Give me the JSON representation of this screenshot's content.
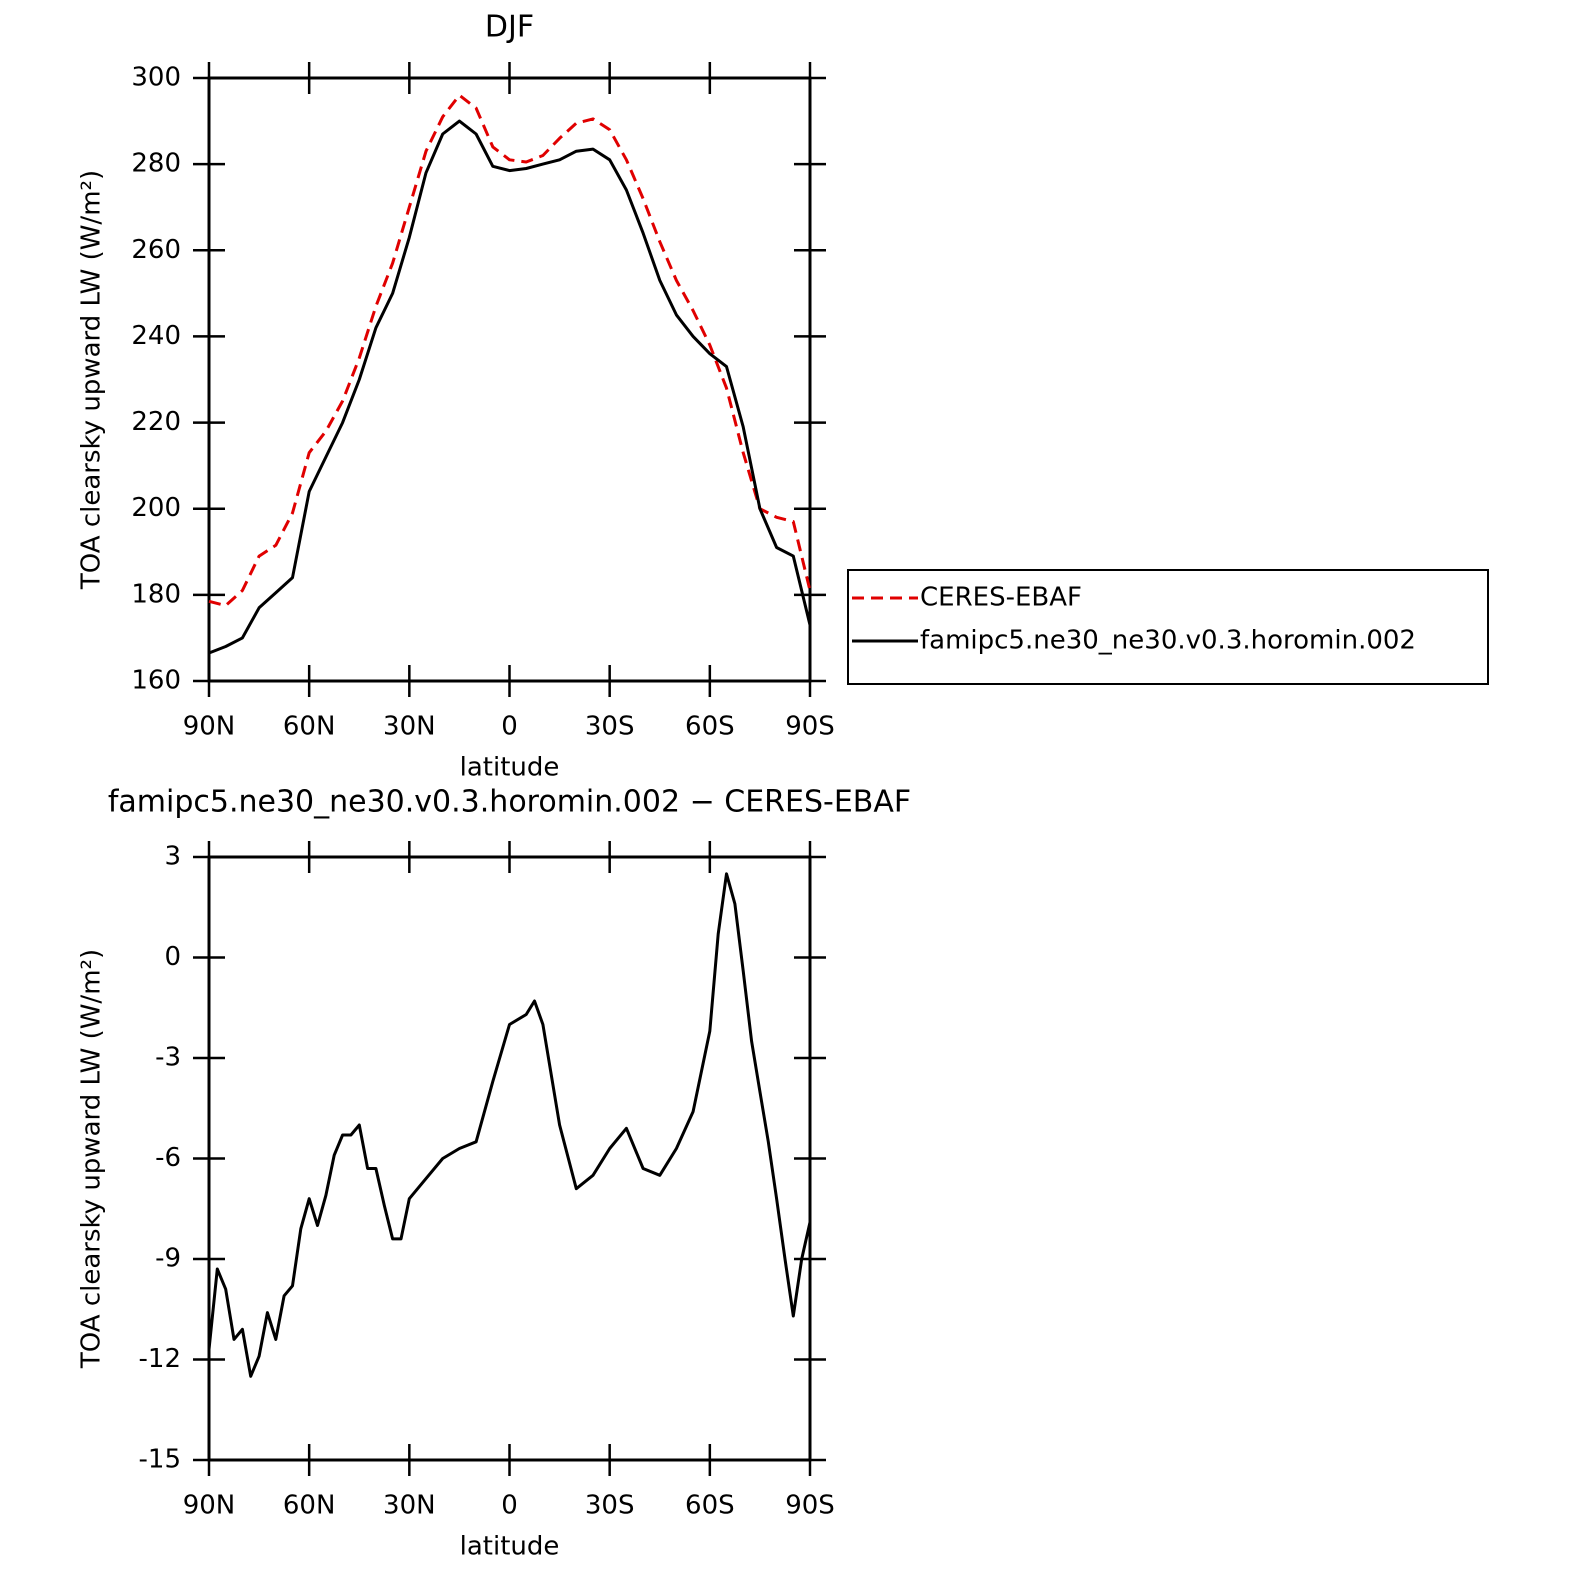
{
  "chart_data": [
    {
      "type": "line",
      "title": "DJF",
      "xlabel": "latitude",
      "ylabel": "TOA clearsky upward LW (W/m²)",
      "x": [
        90,
        85,
        80,
        75,
        70,
        65,
        60,
        55,
        50,
        45,
        40,
        35,
        30,
        25,
        20,
        15,
        10,
        5,
        0,
        -5,
        -10,
        -15,
        -20,
        -25,
        -30,
        -35,
        -40,
        -45,
        -50,
        -55,
        -60,
        -65,
        -70,
        -75,
        -80,
        -85,
        -90
      ],
      "series": [
        {
          "name": "CERES-EBAF",
          "color": "#e00000",
          "linestyle": "dashed",
          "values": [
            178.5,
            177.5,
            181,
            189,
            191.5,
            199,
            213,
            218,
            225,
            235,
            247,
            257,
            270,
            283,
            291,
            296,
            293,
            284,
            281,
            280.5,
            282,
            286,
            289.5,
            290.5,
            288,
            281,
            272,
            262,
            253,
            246,
            238,
            228,
            213,
            200,
            198,
            197,
            181
          ]
        },
        {
          "name": "famipc5.ne30_ne30.v0.3.horomin.002",
          "color": "#000000",
          "linestyle": "solid",
          "values": [
            166.5,
            168,
            170,
            177,
            180.5,
            184,
            204,
            212,
            220,
            230,
            242,
            250,
            263,
            278,
            287,
            290,
            287,
            279.5,
            278.5,
            279,
            280,
            281,
            283,
            283.5,
            281,
            274,
            264,
            253,
            245,
            240,
            236,
            233,
            219,
            200,
            191,
            189,
            173
          ]
        }
      ],
      "xlim": [
        90,
        -90
      ],
      "xticks": [
        {
          "value": 90,
          "label": "90N"
        },
        {
          "value": 60,
          "label": "60N"
        },
        {
          "value": 30,
          "label": "30N"
        },
        0,
        {
          "value": -30,
          "label": "30S"
        },
        {
          "value": -60,
          "label": "60S"
        },
        {
          "value": -90,
          "label": "90S"
        }
      ],
      "ylim": [
        160,
        300
      ],
      "yticks": [
        160,
        180,
        200,
        220,
        240,
        260,
        280,
        300
      ],
      "legend": "right"
    },
    {
      "type": "line",
      "title": "famipc5.ne30_ne30.v0.3.horomin.002 − CERES-EBAF",
      "xlabel": "latitude",
      "ylabel": "TOA clearsky upward LW (W/m²)",
      "x": [
        90,
        87.5,
        85,
        82.5,
        80,
        77.5,
        75,
        72.5,
        70,
        67.5,
        65,
        62.5,
        60,
        57.5,
        55,
        52.5,
        50,
        47.5,
        45,
        42.5,
        40,
        37.5,
        35,
        32.5,
        30,
        25,
        20,
        15,
        10,
        5,
        0,
        -5,
        -7.5,
        -10,
        -15,
        -20,
        -25,
        -30,
        -35,
        -40,
        -45,
        -50,
        -55,
        -60,
        -62.5,
        -65,
        -67.5,
        -70,
        -72.5,
        -75,
        -77.5,
        -80,
        -82.5,
        -85,
        -87.5,
        -90
      ],
      "series": [
        {
          "color": "#000000",
          "linestyle": "solid",
          "values": [
            -11.7,
            -9.3,
            -9.9,
            -11.4,
            -11.1,
            -12.5,
            -11.9,
            -10.6,
            -11.4,
            -10.1,
            -9.8,
            -8.1,
            -7.2,
            -8.0,
            -7.1,
            -5.9,
            -5.3,
            -5.3,
            -5.0,
            -6.3,
            -6.3,
            -7.4,
            -8.4,
            -8.4,
            -7.2,
            -6.6,
            -6.0,
            -5.7,
            -5.5,
            -3.7,
            -2.0,
            -1.7,
            -1.3,
            -2.0,
            -5.0,
            -6.9,
            -6.5,
            -5.7,
            -5.1,
            -6.3,
            -6.5,
            -5.7,
            -4.6,
            -2.2,
            0.7,
            2.5,
            1.6,
            -0.4,
            -2.5,
            -4.0,
            -5.5,
            -7.2,
            -9.0,
            -10.7,
            -9.0,
            -7.9
          ]
        }
      ],
      "xlim": [
        90,
        -90
      ],
      "xticks": [
        {
          "value": 90,
          "label": "90N"
        },
        {
          "value": 60,
          "label": "60N"
        },
        {
          "value": 30,
          "label": "30N"
        },
        0,
        {
          "value": -30,
          "label": "30S"
        },
        {
          "value": -60,
          "label": "60S"
        },
        {
          "value": -90,
          "label": "90S"
        }
      ],
      "ylim": [
        -15,
        3
      ],
      "yticks": [
        -15,
        -12,
        -9,
        -6,
        -3,
        0,
        3
      ]
    }
  ]
}
